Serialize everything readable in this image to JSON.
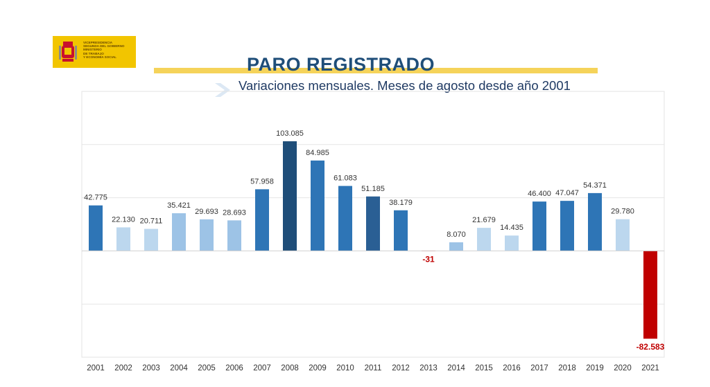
{
  "logo": {
    "text_lines": [
      "VICEPRESIDENCIA",
      "SEGUNDA DEL GOBIERNO",
      "MINISTERIO",
      "DE TRABAJO",
      "Y ECONOMÍA SOCIAL"
    ],
    "color": "#f2c500"
  },
  "header": {
    "title": "PARO REGISTRADO",
    "subtitle": "Variaciones mensuales. Meses de agosto desde año 2001"
  },
  "colors": {
    "light": "#bcd7ee",
    "mid": "#9dc3e6",
    "blue": "#2e75b6",
    "dark": "#1f4e79",
    "negative": "#c00000",
    "grid": "#e6e6e6"
  },
  "chart_data": {
    "type": "bar",
    "categories": [
      "2001",
      "2002",
      "2003",
      "2004",
      "2005",
      "2006",
      "2007",
      "2008",
      "2009",
      "2010",
      "2011",
      "2012",
      "2013",
      "2014",
      "2015",
      "2016",
      "2017",
      "2018",
      "2019",
      "2020",
      "2021"
    ],
    "values": [
      42775,
      22130,
      20711,
      35421,
      29693,
      28693,
      57958,
      103085,
      84985,
      61083,
      51185,
      38179,
      -31,
      8070,
      21679,
      14435,
      46400,
      47047,
      54371,
      29780,
      -82583
    ],
    "data_labels": [
      "42.775",
      "22.130",
      "20.711",
      "35.421",
      "29.693",
      "28.693",
      "57.958",
      "103.085",
      "84.985",
      "61.083",
      "51.185",
      "38.179",
      "-31",
      "8.070",
      "21.679",
      "14.435",
      "46.400",
      "47.047",
      "54.371",
      "29.780",
      "-82.583"
    ],
    "bar_colors": [
      "#2e75b6",
      "#bcd7ee",
      "#bcd7ee",
      "#9dc3e6",
      "#9dc3e6",
      "#9dc3e6",
      "#2e75b6",
      "#1f4e79",
      "#2e75b6",
      "#2e75b6",
      "#2a5f94",
      "#2e75b6",
      "#c00000",
      "#9dc3e6",
      "#bcd7ee",
      "#bcd7ee",
      "#2e75b6",
      "#2e75b6",
      "#2e75b6",
      "#bcd7ee",
      "#c00000"
    ],
    "ylim": [
      -100000,
      150000
    ],
    "grid": true,
    "legend": "none",
    "xlabel": "",
    "ylabel": ""
  }
}
